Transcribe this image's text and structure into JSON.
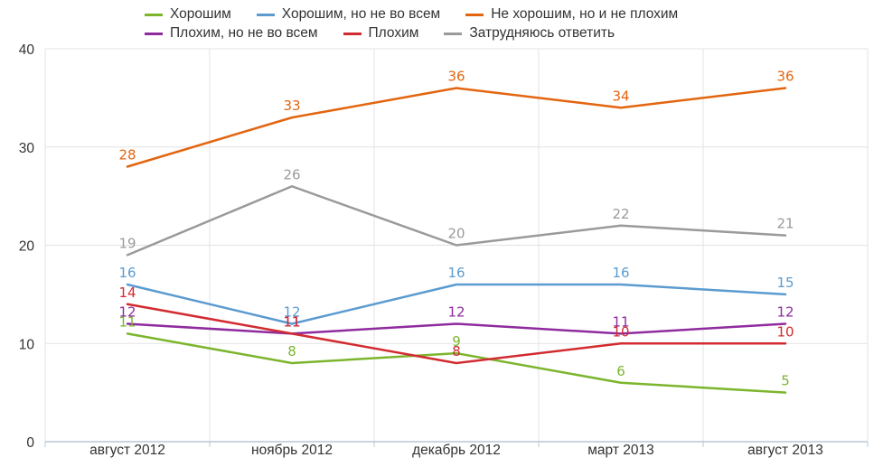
{
  "chart_data": {
    "type": "line",
    "categories": [
      "август 2012",
      "ноябрь 2012",
      "декабрь 2012",
      "март 2013",
      "август 2013"
    ],
    "ylim": [
      0,
      40
    ],
    "yticks": [
      0,
      10,
      20,
      30,
      40
    ],
    "grid": true,
    "legend_position": "top-center",
    "series": [
      {
        "name": "Хорошим",
        "color": "#7cb52d",
        "values": [
          11,
          8,
          9,
          6,
          5
        ]
      },
      {
        "name": "Хорошим, но не во всем",
        "color": "#5b9bd0",
        "values": [
          16,
          12,
          16,
          16,
          15
        ]
      },
      {
        "name": "Не хорошим, но и не плохим",
        "color": "#e3650f",
        "values": [
          28,
          33,
          36,
          34,
          36
        ]
      },
      {
        "name": "Плохим, но не во всем",
        "color": "#8f2b9e",
        "values": [
          12,
          11,
          12,
          11,
          12
        ]
      },
      {
        "name": "Плохим",
        "color": "#d22b30",
        "values": [
          14,
          11,
          8,
          10,
          10
        ]
      },
      {
        "name": "Затрудняюсь ответить",
        "color": "#9a9a9a",
        "values": [
          19,
          26,
          20,
          22,
          21
        ]
      }
    ]
  }
}
